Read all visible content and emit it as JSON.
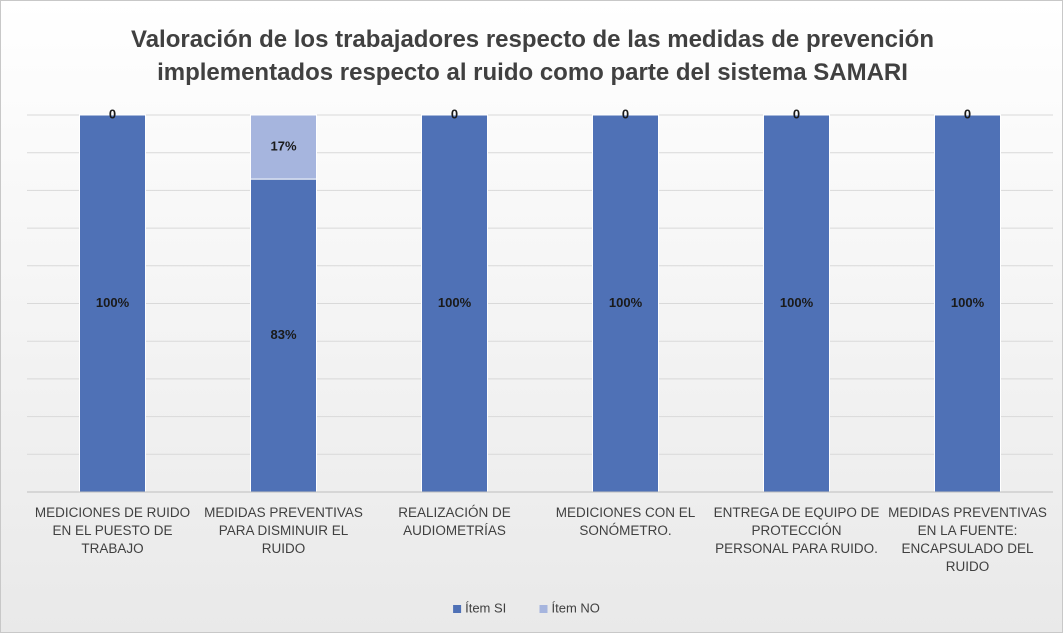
{
  "chart_data": {
    "type": "stacked_bar",
    "title": "Valoración de los trabajadores respecto de las medidas de prevención implementados respecto al ruido como parte del sistema SAMARI",
    "categories": [
      "MEDICIONES DE RUIDO EN EL PUESTO DE TRABAJO",
      "MEDIDAS PREVENTIVAS PARA DISMINUIR EL RUIDO",
      "REALIZACIÓN DE AUDIOMETRÍAS",
      "MEDICIONES CON EL SONÓMETRO.",
      "ENTREGA DE EQUIPO DE PROTECCIÓN PERSONAL PARA RUIDO.",
      "MEDIDAS PREVENTIVAS EN LA FUENTE: ENCAPSULADO DEL RUIDO"
    ],
    "series": [
      {
        "name": "Ítem SI",
        "color": "#4f71b6",
        "values": [
          100,
          83,
          100,
          100,
          100,
          100
        ],
        "value_labels": [
          "100%",
          "83%",
          "100%",
          "100%",
          "100%",
          "100%"
        ]
      },
      {
        "name": "Ítem NO",
        "color": "#a6b5de",
        "values": [
          0,
          17,
          0,
          0,
          0,
          0
        ],
        "value_labels": [
          "0",
          "17%",
          "0",
          "0",
          "0",
          "0"
        ]
      }
    ],
    "ylim": [
      0,
      100
    ],
    "yticks": [
      0,
      10,
      20,
      30,
      40,
      50,
      60,
      70,
      80,
      90,
      100
    ],
    "grid": true,
    "legend": "bottom"
  }
}
